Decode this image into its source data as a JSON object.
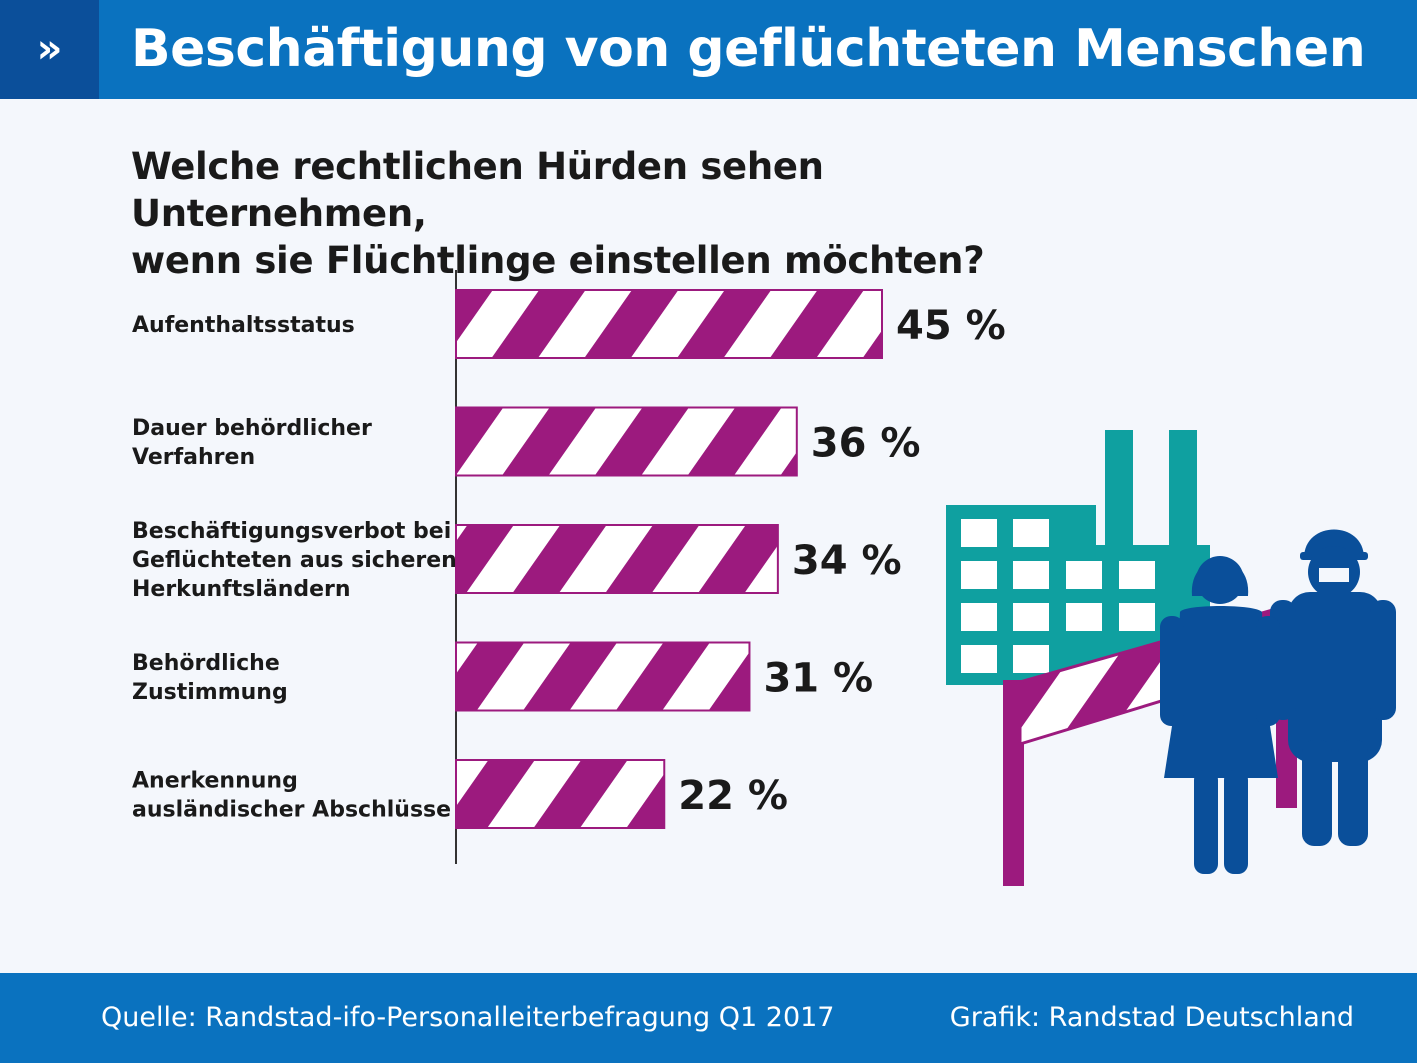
{
  "header": {
    "title": "Beschäftigung von geflüchteten Menschen",
    "chevron": "»"
  },
  "question": {
    "line1": "Welche rechtlichen Hürden sehen Unternehmen,",
    "line2": "wenn sie Flüchtlinge einstellen möchten?"
  },
  "chart_data": {
    "type": "bar",
    "orientation": "horizontal",
    "title": "Welche rechtlichen Hürden sehen Unternehmen, wenn sie Flüchtlinge einstellen möchten?",
    "categories": [
      [
        "Aufenthaltsstatus"
      ],
      [
        "Dauer behördlicher",
        "Verfahren"
      ],
      [
        "Beschäftigungsverbot bei",
        "Geflüchteten aus sicheren",
        "Herkunftsländern"
      ],
      [
        "Behördliche",
        "Zustimmung"
      ],
      [
        "Anerkennung",
        "ausländischer Abschlüsse"
      ]
    ],
    "values": [
      45,
      36,
      34,
      31,
      22
    ],
    "value_labels": [
      "45 %",
      "36 %",
      "34 %",
      "31 %",
      "22 %"
    ],
    "unit": "%",
    "xlim": [
      0,
      45
    ],
    "grid": false,
    "bar_style": "diagonal purple and white stripes",
    "bar_color": "#9c1a7e"
  },
  "colors": {
    "header": "#0a72bf",
    "header_accent": "#0b4f9a",
    "bar": "#9c1a7e",
    "factory": "#0fa0a0",
    "people": "#0a4f9a",
    "background": "#f4f7fc"
  },
  "illustration": {
    "factory_icon": "factory-icon",
    "barrier_icon": "barrier-icon",
    "woman_icon": "woman-icon",
    "worker_icon": "worker-with-helmet-icon"
  },
  "footer": {
    "source": "Quelle: Randstad-ifo-Personalleiterbefragung Q1 2017",
    "credit": "Grafik: Randstad Deutschland"
  }
}
